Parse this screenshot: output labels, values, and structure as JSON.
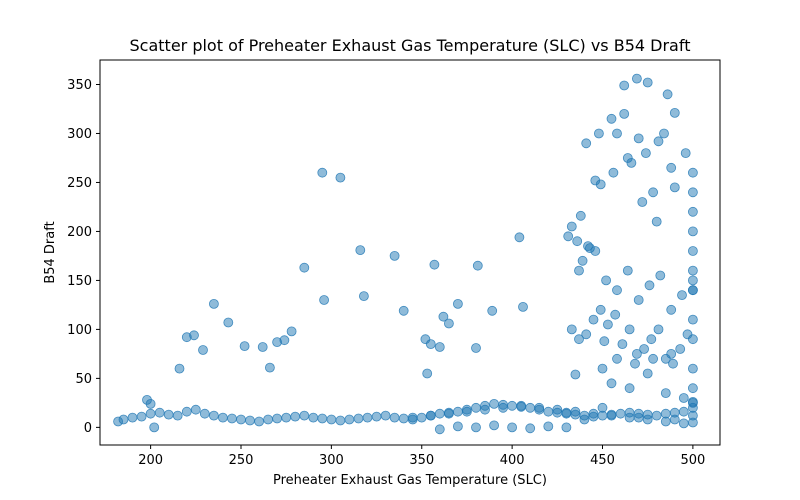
{
  "chart_data": {
    "type": "scatter",
    "title": "Scatter plot of Preheater Exhaust Gas Temperature (SLC) vs B54 Draft",
    "xlabel": "Preheater Exhaust Gas Temperature (SLC)",
    "ylabel": "B54 Draft",
    "xlim": [
      172,
      515
    ],
    "ylim": [
      -18,
      375
    ],
    "xticks": [
      200,
      250,
      300,
      350,
      400,
      450,
      500
    ],
    "yticks": [
      0,
      50,
      100,
      150,
      200,
      250,
      300,
      350
    ],
    "grid": false,
    "legend": "none",
    "marker_color": "#1f77b4",
    "marker_alpha": 0.5,
    "series": [
      {
        "x": [
          216,
          220,
          224,
          229,
          235,
          243,
          252,
          262,
          266,
          270,
          274,
          278,
          285,
          295,
          296,
          305,
          316,
          318,
          335,
          340,
          352,
          353,
          355,
          357,
          360,
          362,
          365,
          370,
          380,
          381,
          389,
          404,
          406,
          435,
          437,
          438,
          443,
          446,
          449,
          451,
          462,
          469,
          475,
          481,
          486,
          490,
          455,
          458,
          462,
          466,
          470,
          474,
          478,
          484,
          488,
          441,
          448,
          456,
          464,
          472,
          480,
          490,
          496,
          500,
          500,
          500,
          500,
          431,
          436,
          442,
          433,
          439,
          446,
          452,
          458,
          464,
          470,
          476,
          482,
          488,
          494,
          500,
          433,
          437,
          441,
          445,
          449,
          453,
          457,
          461,
          465,
          469,
          473,
          477,
          481,
          485,
          489,
          493,
          497,
          500,
          450,
          458,
          468,
          478,
          488,
          500,
          455,
          465,
          475,
          485,
          495,
          430,
          450,
          470,
          490,
          500,
          182,
          185,
          190,
          195,
          200,
          205,
          210,
          215,
          220,
          225,
          230,
          235,
          240,
          245,
          250,
          255,
          260,
          265,
          270,
          275,
          280,
          285,
          290,
          295,
          300,
          305,
          310,
          315,
          320,
          325,
          330,
          335,
          340,
          345,
          350,
          355,
          360,
          365,
          370,
          375,
          380,
          385,
          390,
          395,
          400,
          405,
          410,
          415,
          420,
          425,
          430,
          435,
          440,
          445,
          450,
          455,
          460,
          465,
          470,
          475,
          480,
          485,
          490,
          495,
          500,
          198,
          200,
          202,
          360,
          370,
          380,
          390,
          400,
          410,
          420,
          430,
          440,
          345,
          355,
          365,
          375,
          385,
          395,
          405,
          415,
          425,
          435,
          445,
          455,
          465,
          475,
          485,
          495,
          500,
          500,
          500,
          500,
          500,
          500,
          500,
          500,
          500
        ],
        "y": [
          60,
          92,
          94,
          79,
          126,
          107,
          83,
          82,
          61,
          87,
          89,
          98,
          163,
          260,
          130,
          255,
          181,
          134,
          175,
          119,
          90,
          55,
          85,
          166,
          82,
          113,
          106,
          126,
          81,
          165,
          119,
          194,
          123,
          54,
          160,
          216,
          183,
          252,
          248,
          88,
          349,
          356,
          352,
          292,
          340,
          321,
          315,
          300,
          320,
          270,
          295,
          280,
          240,
          300,
          265,
          290,
          300,
          260,
          275,
          230,
          210,
          245,
          280,
          200,
          150,
          110,
          60,
          195,
          190,
          185,
          205,
          170,
          180,
          150,
          140,
          160,
          130,
          145,
          155,
          120,
          135,
          140,
          100,
          90,
          95,
          110,
          120,
          105,
          115,
          85,
          100,
          75,
          80,
          90,
          100,
          70,
          65,
          80,
          95,
          90,
          60,
          70,
          65,
          70,
          75,
          25,
          45,
          40,
          55,
          35,
          30,
          15,
          20,
          10,
          8,
          12,
          6,
          8,
          10,
          11,
          14,
          15,
          13,
          12,
          16,
          18,
          14,
          12,
          10,
          9,
          8,
          7,
          6,
          8,
          9,
          10,
          11,
          12,
          10,
          9,
          8,
          7,
          8,
          9,
          10,
          11,
          12,
          10,
          9,
          8,
          10,
          12,
          14,
          15,
          16,
          18,
          20,
          22,
          24,
          23,
          22,
          21,
          20,
          18,
          16,
          15,
          14,
          13,
          12,
          11,
          12,
          13,
          14,
          15,
          14,
          13,
          12,
          14,
          15,
          16,
          26,
          28,
          24,
          0,
          -2,
          1,
          0,
          2,
          0,
          -1,
          1,
          0,
          8,
          10,
          12,
          14,
          16,
          18,
          20,
          22,
          20,
          18,
          16,
          14,
          12,
          10,
          8,
          6,
          4,
          260,
          240,
          220,
          180,
          160,
          140,
          40,
          20,
          5
        ]
      }
    ]
  }
}
